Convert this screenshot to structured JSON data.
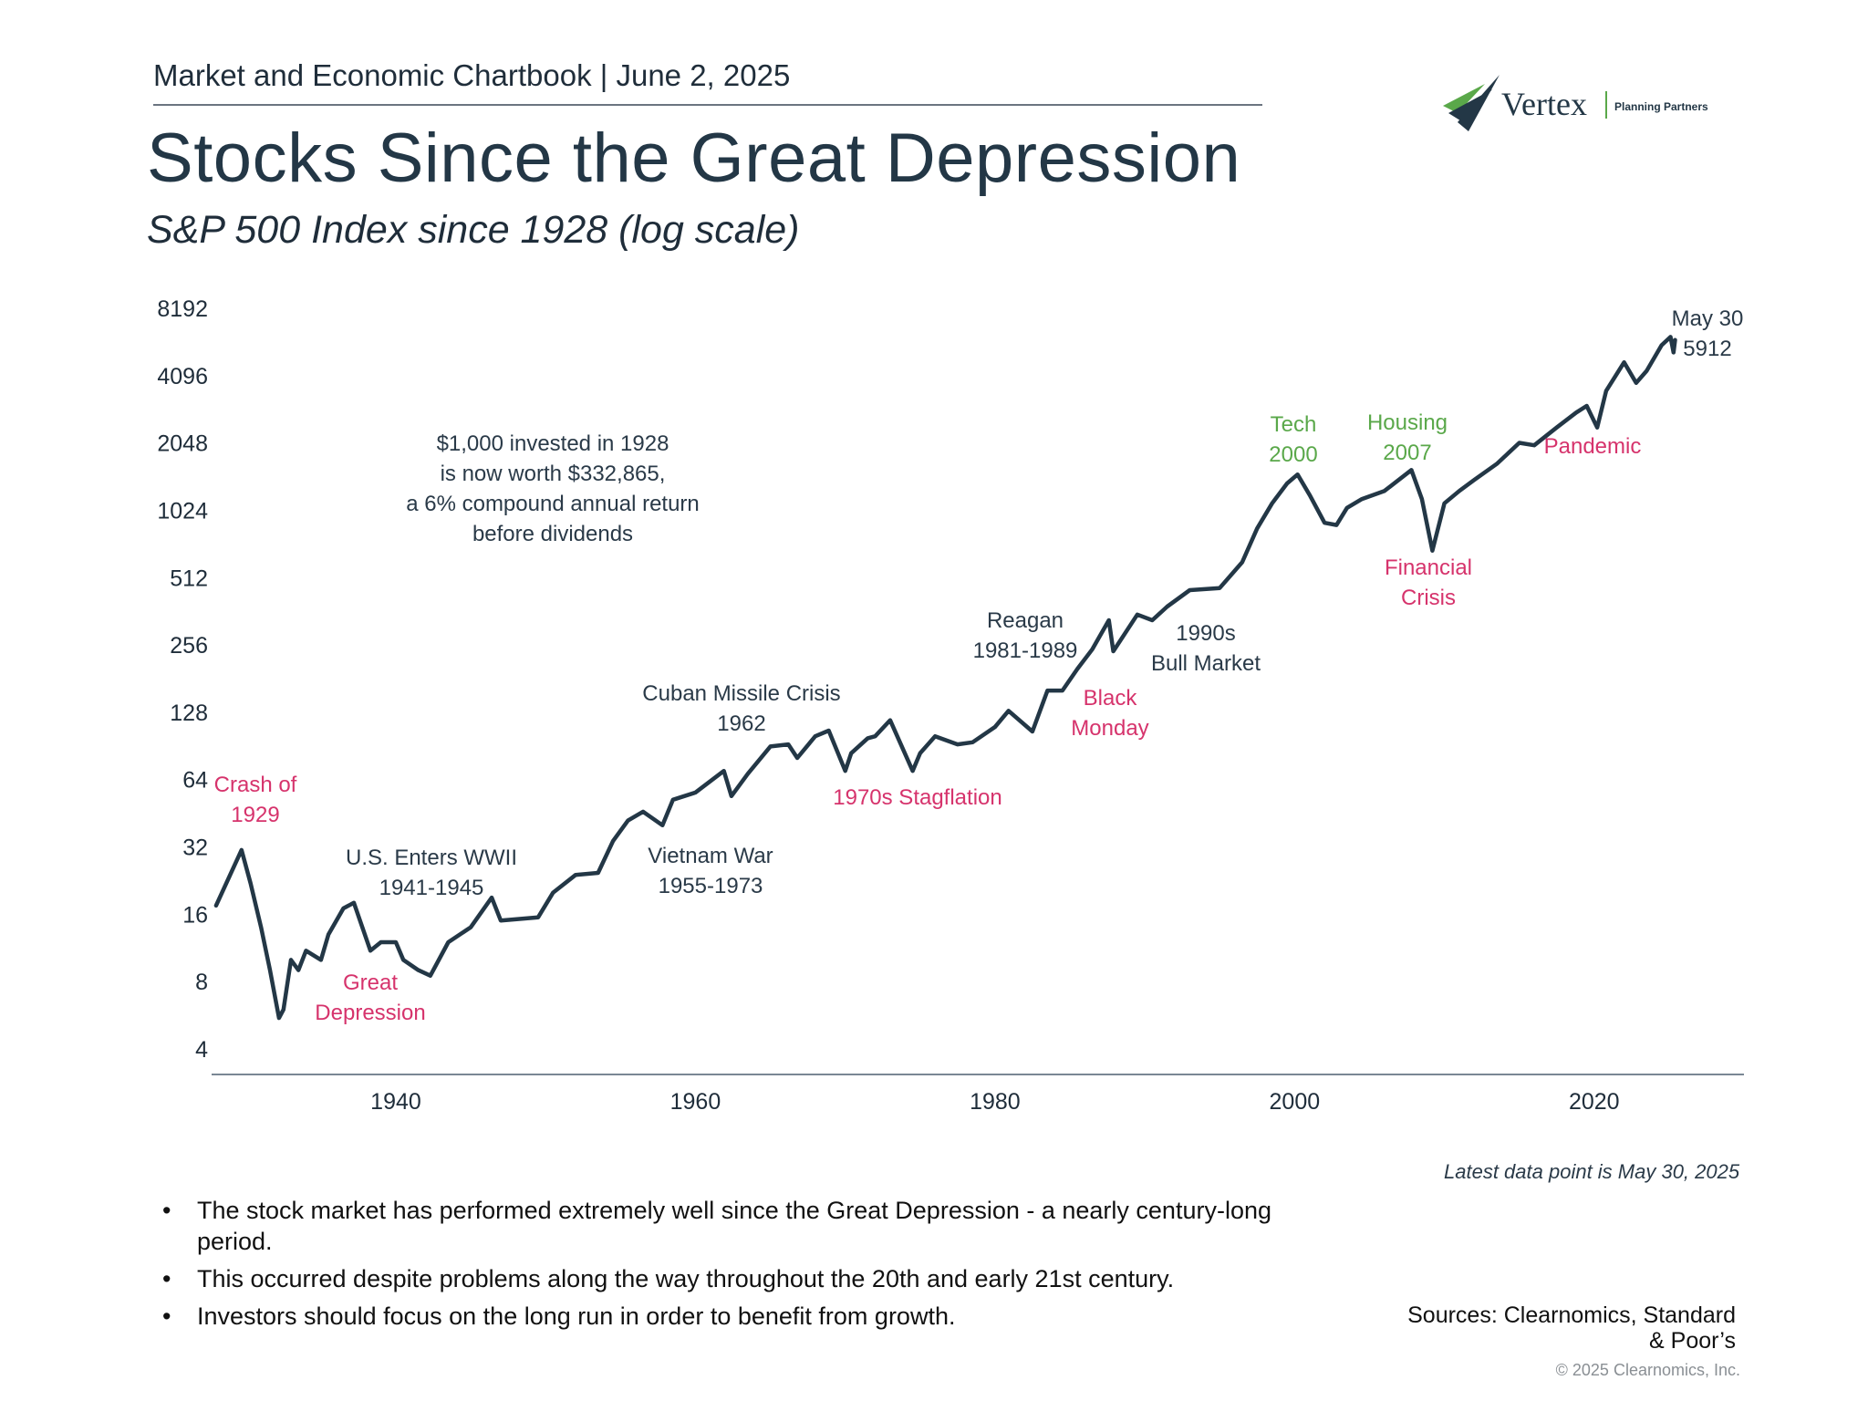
{
  "header": {
    "chartbook": "Market and Economic Chartbook | June 2, 2025",
    "title": "Stocks Since the Great Depression",
    "subtitle": "S&P 500 Index since 1928 (log scale)"
  },
  "logo": {
    "name": "Vertex",
    "tagline": "Planning Partners"
  },
  "colors": {
    "line": "#233746",
    "negative": "#d6336c",
    "positive": "#5aa84a",
    "text": "#2a3a48",
    "axis": "#7a8794"
  },
  "chart_data": {
    "type": "line",
    "title": "S&P 500 Index since 1928 (log scale)",
    "xlabel": "",
    "ylabel": "",
    "yscale": "log2",
    "ylim": [
      4,
      8192
    ],
    "xlim": [
      1927.7,
      2030
    ],
    "yticks": [
      "8192",
      "4096",
      "2048",
      "1024",
      "512",
      "256",
      "128",
      "64",
      "32",
      "16",
      "8",
      "4"
    ],
    "xticks": [
      "1940",
      "1960",
      "1980",
      "2000",
      "2020"
    ],
    "series": [
      {
        "name": "S&P 500",
        "x": [
          1928.0,
          1929.7,
          1930.3,
          1931.0,
          1931.6,
          1932.2,
          1932.5,
          1933.0,
          1933.5,
          1934.0,
          1935.0,
          1935.5,
          1936.5,
          1937.2,
          1938.3,
          1939.0,
          1940.0,
          1940.5,
          1941.5,
          1942.3,
          1943.5,
          1945.0,
          1946.4,
          1947.0,
          1949.5,
          1950.5,
          1952.0,
          1953.5,
          1954.5,
          1955.5,
          1956.5,
          1957.8,
          1958.5,
          1960.0,
          1961.9,
          1962.4,
          1963.5,
          1965.0,
          1966.2,
          1966.8,
          1968.0,
          1968.9,
          1970.0,
          1970.4,
          1971.5,
          1972.0,
          1973.0,
          1974.5,
          1975.0,
          1976.0,
          1977.5,
          1978.5,
          1980.0,
          1980.9,
          1982.5,
          1983.5,
          1984.5,
          1985.5,
          1986.5,
          1987.6,
          1987.9,
          1989.5,
          1990.5,
          1991.5,
          1993.0,
          1995.0,
          1996.5,
          1997.5,
          1998.5,
          1999.5,
          2000.2,
          2001.0,
          2002.0,
          2002.8,
          2003.5,
          2004.5,
          2006.0,
          2007.8,
          2008.5,
          2009.2,
          2010.0,
          2011.0,
          2012.0,
          2013.5,
          2015.0,
          2016.0,
          2017.5,
          2018.8,
          2019.5,
          2020.2,
          2020.8,
          2022.0,
          2022.8,
          2023.5,
          2024.5,
          2025.1,
          2025.3,
          2025.4
        ],
        "values": [
          17.5,
          31,
          22,
          14,
          9,
          5.5,
          6,
          10,
          9,
          11,
          10,
          13,
          17,
          18,
          11,
          12,
          12,
          10,
          9,
          8.5,
          12,
          14,
          19,
          15,
          15.5,
          20,
          24,
          24.5,
          34,
          42,
          46,
          40,
          52,
          56,
          70,
          54,
          68,
          90,
          92,
          80,
          100,
          106,
          70,
          84,
          98,
          100,
          118,
          70,
          84,
          100,
          92,
          94,
          110,
          130,
          105,
          160,
          160,
          200,
          245,
          330,
          240,
          350,
          330,
          380,
          450,
          460,
          600,
          850,
          1100,
          1350,
          1480,
          1200,
          900,
          880,
          1050,
          1150,
          1250,
          1550,
          1150,
          676,
          1100,
          1250,
          1400,
          1650,
          2050,
          2000,
          2400,
          2800,
          3000,
          2400,
          3500,
          4700,
          3800,
          4300,
          5600,
          6100,
          5200,
          5912
        ]
      }
    ],
    "annotations": [
      {
        "text": [
          "Crash of",
          "1929"
        ],
        "category": "negative"
      },
      {
        "text": [
          "Great",
          "Depression"
        ],
        "category": "negative"
      },
      {
        "text": [
          "U.S. Enters WWII",
          "1941-1945"
        ],
        "category": "neutral"
      },
      {
        "text": [
          "$1,000 invested in 1928",
          "is now worth $332,865,",
          "a 6% compound annual return",
          "before dividends"
        ],
        "category": "neutral"
      },
      {
        "text": [
          "Cuban Missile Crisis",
          "1962"
        ],
        "category": "neutral"
      },
      {
        "text": [
          "Vietnam War",
          "1955-1973"
        ],
        "category": "neutral"
      },
      {
        "text": [
          "1970s Stagflation"
        ],
        "category": "negative"
      },
      {
        "text": [
          "Reagan",
          "1981-1989"
        ],
        "category": "neutral"
      },
      {
        "text": [
          "Black",
          "Monday"
        ],
        "category": "negative"
      },
      {
        "text": [
          "1990s",
          "Bull Market"
        ],
        "category": "neutral"
      },
      {
        "text": [
          "Tech",
          "2000"
        ],
        "category": "positive"
      },
      {
        "text": [
          "Housing",
          "2007"
        ],
        "category": "positive"
      },
      {
        "text": [
          "Financial",
          "Crisis"
        ],
        "category": "negative"
      },
      {
        "text": [
          "Pandemic"
        ],
        "category": "negative"
      },
      {
        "text": [
          "May 30",
          "5912"
        ],
        "category": "neutral"
      }
    ]
  },
  "note": "Latest data point is May 30, 2025",
  "bullets": [
    "The stock market has performed extremely well since the Great Depression - a nearly century-long period.",
    "This occurred despite problems along the way throughout the 20th and early 21st century.",
    "Investors should focus on the long run in order to benefit from growth."
  ],
  "sources": "Sources: Clearnomics, Standard & Poor’s",
  "copyright": "© 2025 Clearnomics, Inc."
}
